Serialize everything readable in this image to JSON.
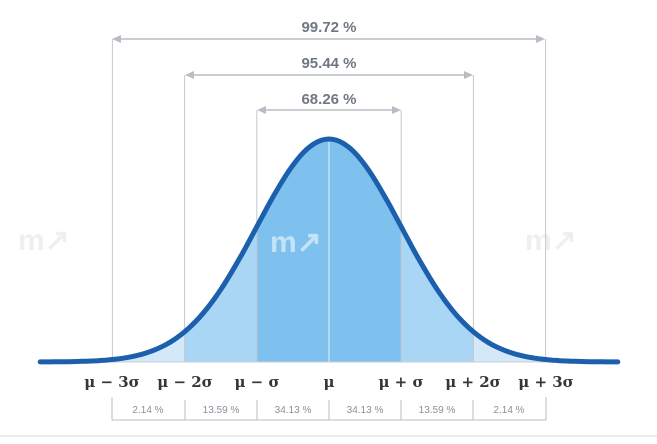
{
  "ranges": [
    {
      "label": "99.72 %",
      "from": -3,
      "to": 3
    },
    {
      "label": "95.44 %",
      "from": -2,
      "to": 2
    },
    {
      "label": "68.26 %",
      "from": -1,
      "to": 1
    }
  ],
  "axis_labels": [
    "μ − 3σ",
    "μ − 2σ",
    "μ − σ",
    "μ",
    "μ + σ",
    "μ + 2σ",
    "μ + 3σ"
  ],
  "segment_percentages": [
    "2.14 %",
    "13.59 %",
    "34.13 %",
    "34.13 %",
    "13.59 %",
    "2.14 %"
  ],
  "colors": {
    "curve": "#1b5fad",
    "band_1sigma": "#7fc1ee",
    "band_2sigma": "#a9d6f5",
    "band_3sigma": "#d3e9fa"
  }
}
